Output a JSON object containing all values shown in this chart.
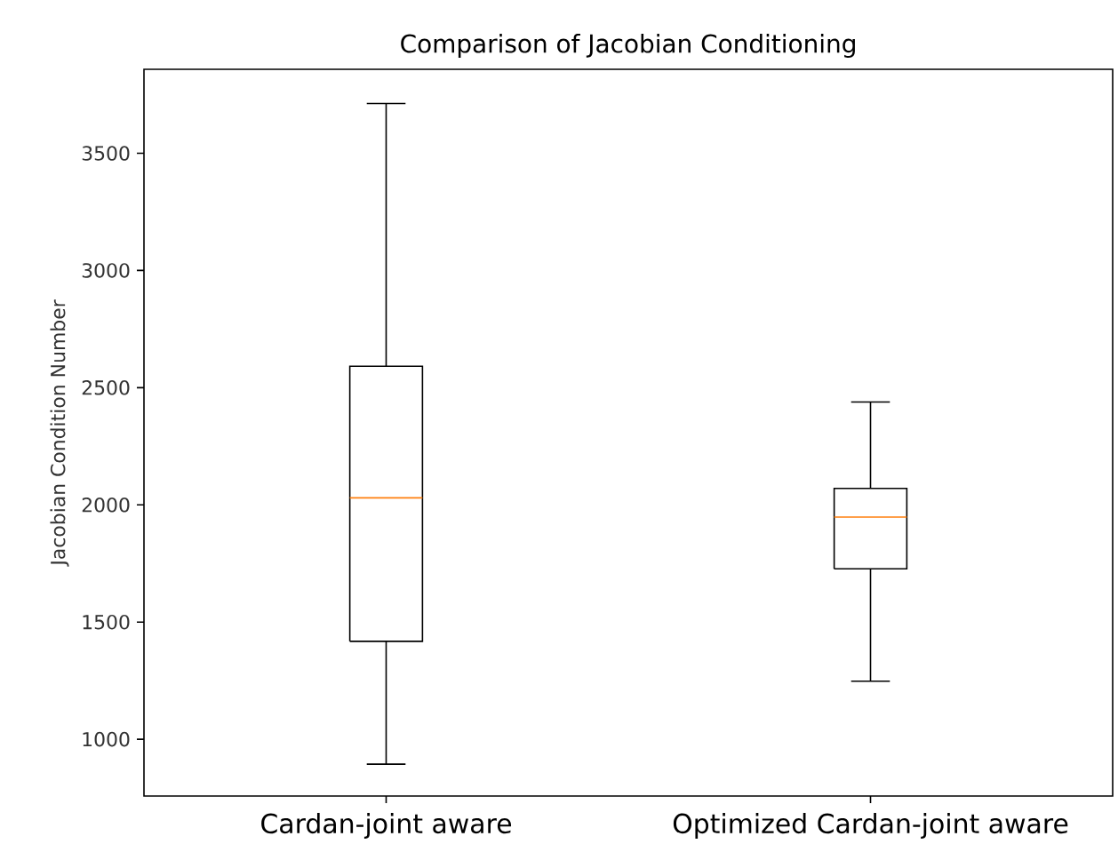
{
  "chart_data": {
    "type": "box",
    "title": "Comparison of Jacobian Conditioning",
    "ylabel": "Jacobian Condition Number",
    "categories": [
      "Cardan-joint aware",
      "Optimized Cardan-joint aware"
    ],
    "boxes": [
      {
        "low": 894,
        "q1": 1418,
        "median": 2030,
        "q3": 2591,
        "high": 3712
      },
      {
        "low": 1248,
        "q1": 1727,
        "median": 1948,
        "q3": 2070,
        "high": 2439
      }
    ],
    "ylim": [
      758,
      3858
    ],
    "yticks": [
      1000,
      1500,
      2000,
      2500,
      3000,
      3500
    ],
    "grid": false
  }
}
